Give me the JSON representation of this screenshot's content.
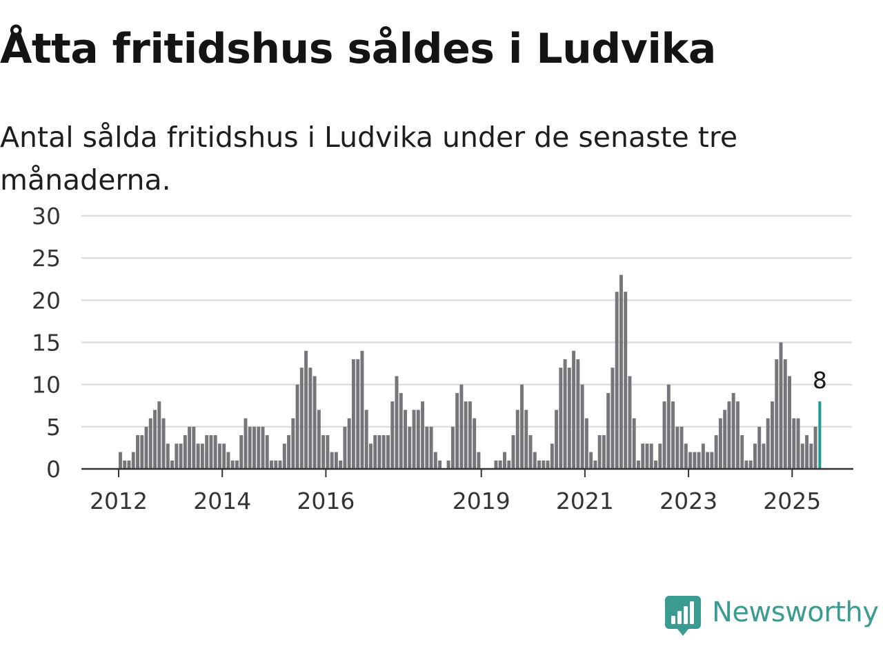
{
  "header": {
    "title": "Åtta fritidshus såldes i Ludvika",
    "subtitle": "Antal sålda fritidshus i Ludvika under de senaste tre månaderna."
  },
  "brand": {
    "name": "Newsworthy",
    "logo_icon": "newsworthy-logo-icon",
    "color": "#3a9b90"
  },
  "colors": {
    "bar": "#76757a",
    "highlight": "#1c9c8e",
    "grid": "#dedede",
    "axis": "#333333"
  },
  "chart_data": {
    "type": "bar",
    "title": "",
    "xlabel": "",
    "ylabel": "",
    "ylim": [
      0,
      30
    ],
    "yticks": [
      "0",
      "5",
      "10",
      "15",
      "20",
      "25",
      "30"
    ],
    "xtick_labels": [
      "2012",
      "2014",
      "2016",
      "2019",
      "2021",
      "2023",
      "2025"
    ],
    "grid": true,
    "legend": "none",
    "start": "2012-01",
    "highlight_label": "8",
    "values": [
      2,
      1,
      1,
      2,
      4,
      4,
      5,
      6,
      7,
      8,
      6,
      3,
      1,
      3,
      3,
      4,
      5,
      5,
      3,
      3,
      4,
      4,
      4,
      3,
      3,
      2,
      1,
      1,
      4,
      6,
      5,
      5,
      5,
      5,
      4,
      1,
      1,
      1,
      3,
      4,
      6,
      10,
      12,
      14,
      12,
      11,
      7,
      4,
      4,
      2,
      2,
      1,
      5,
      6,
      13,
      13,
      14,
      7,
      3,
      4,
      4,
      4,
      4,
      8,
      11,
      9,
      7,
      5,
      7,
      7,
      8,
      5,
      5,
      2,
      1,
      0,
      1,
      5,
      9,
      10,
      8,
      8,
      6,
      2,
      0,
      0,
      0,
      1,
      1,
      2,
      1,
      4,
      7,
      10,
      7,
      4,
      2,
      1,
      1,
      1,
      3,
      7,
      12,
      13,
      12,
      14,
      13,
      10,
      6,
      2,
      1,
      4,
      4,
      9,
      12,
      21,
      23,
      21,
      11,
      6,
      1,
      3,
      3,
      3,
      1,
      3,
      8,
      10,
      8,
      5,
      5,
      3,
      2,
      2,
      2,
      3,
      2,
      2,
      4,
      6,
      7,
      8,
      9,
      8,
      4,
      1,
      1,
      3,
      5,
      3,
      6,
      8,
      13,
      15,
      13,
      11,
      6,
      6,
      3,
      4,
      3,
      5,
      8
    ]
  }
}
